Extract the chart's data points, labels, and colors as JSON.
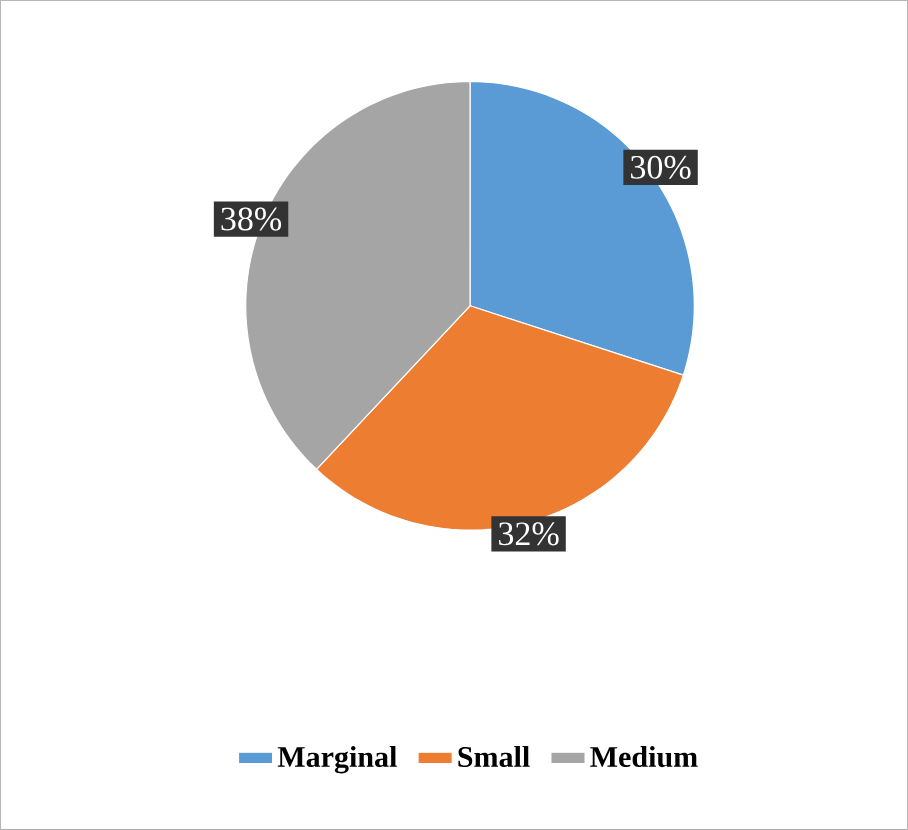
{
  "chart_data": {
    "type": "pie",
    "categories": [
      "Marginal",
      "Small",
      "Medium"
    ],
    "values": [
      30,
      32,
      38
    ],
    "colors": [
      "#5b9bd5",
      "#ed7d31",
      "#a5a5a5"
    ],
    "value_labels": [
      "30%",
      "32%",
      "38%"
    ],
    "legend": "bottom"
  }
}
